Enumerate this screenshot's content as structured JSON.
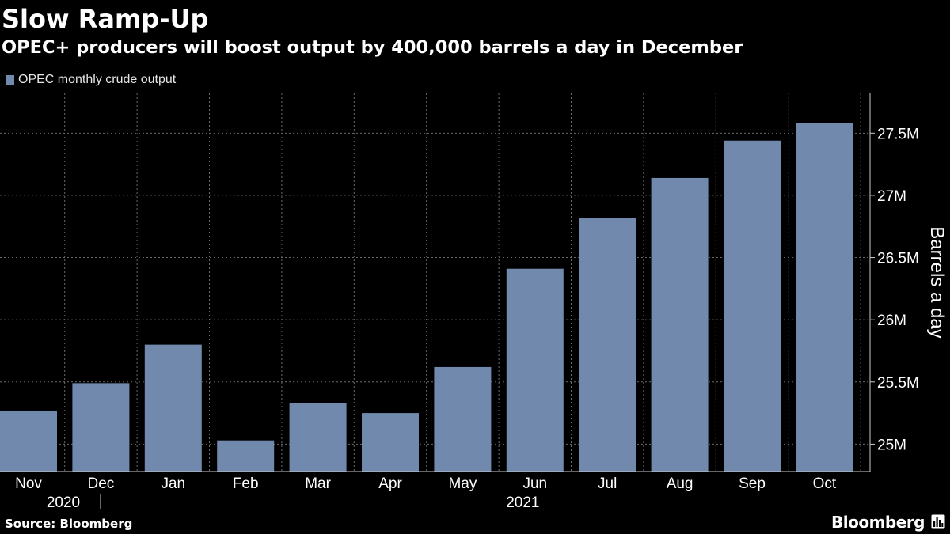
{
  "header": {
    "title": "Slow Ramp-Up",
    "subtitle": "OPEC+ producers will boost output by 400,000 barrels a day in December"
  },
  "footer": {
    "source": "Source: Bloomberg",
    "brand": "Bloomberg",
    "brand_icon": "bloomberg-terminal-icon"
  },
  "colors": {
    "background": "#000000",
    "bar": "#7089ad",
    "grid": "#6a6a6a",
    "axis": "#cccccc",
    "text": "#ffffff"
  },
  "chart_data": {
    "type": "bar",
    "title": "Slow Ramp-Up",
    "subtitle": "OPEC+ producers will boost output by 400,000 barrels a day in December",
    "legend": [
      "OPEC monthly crude output"
    ],
    "legend_position": "top-left",
    "categories": [
      "Nov",
      "Dec",
      "Jan",
      "Feb",
      "Mar",
      "Apr",
      "May",
      "Jun",
      "Jul",
      "Aug",
      "Sep",
      "Oct"
    ],
    "year_labels": [
      {
        "label": "2020",
        "category": "Nov"
      },
      {
        "label": "2021",
        "category": "May"
      }
    ],
    "series": [
      {
        "name": "OPEC monthly crude output",
        "values": [
          25.27,
          25.49,
          25.8,
          25.03,
          25.33,
          25.25,
          25.62,
          26.41,
          26.82,
          27.14,
          27.44,
          27.58
        ]
      }
    ],
    "ylabel": "Barrels a day",
    "ylim": [
      24.78,
      27.82
    ],
    "yticks": [
      25,
      25.5,
      26,
      26.5,
      27,
      27.5
    ],
    "ytick_labels": [
      "25M",
      "25.5M",
      "26M",
      "26.5M",
      "27M",
      "27.5M"
    ],
    "yaxis_side": "right",
    "grid": true
  }
}
